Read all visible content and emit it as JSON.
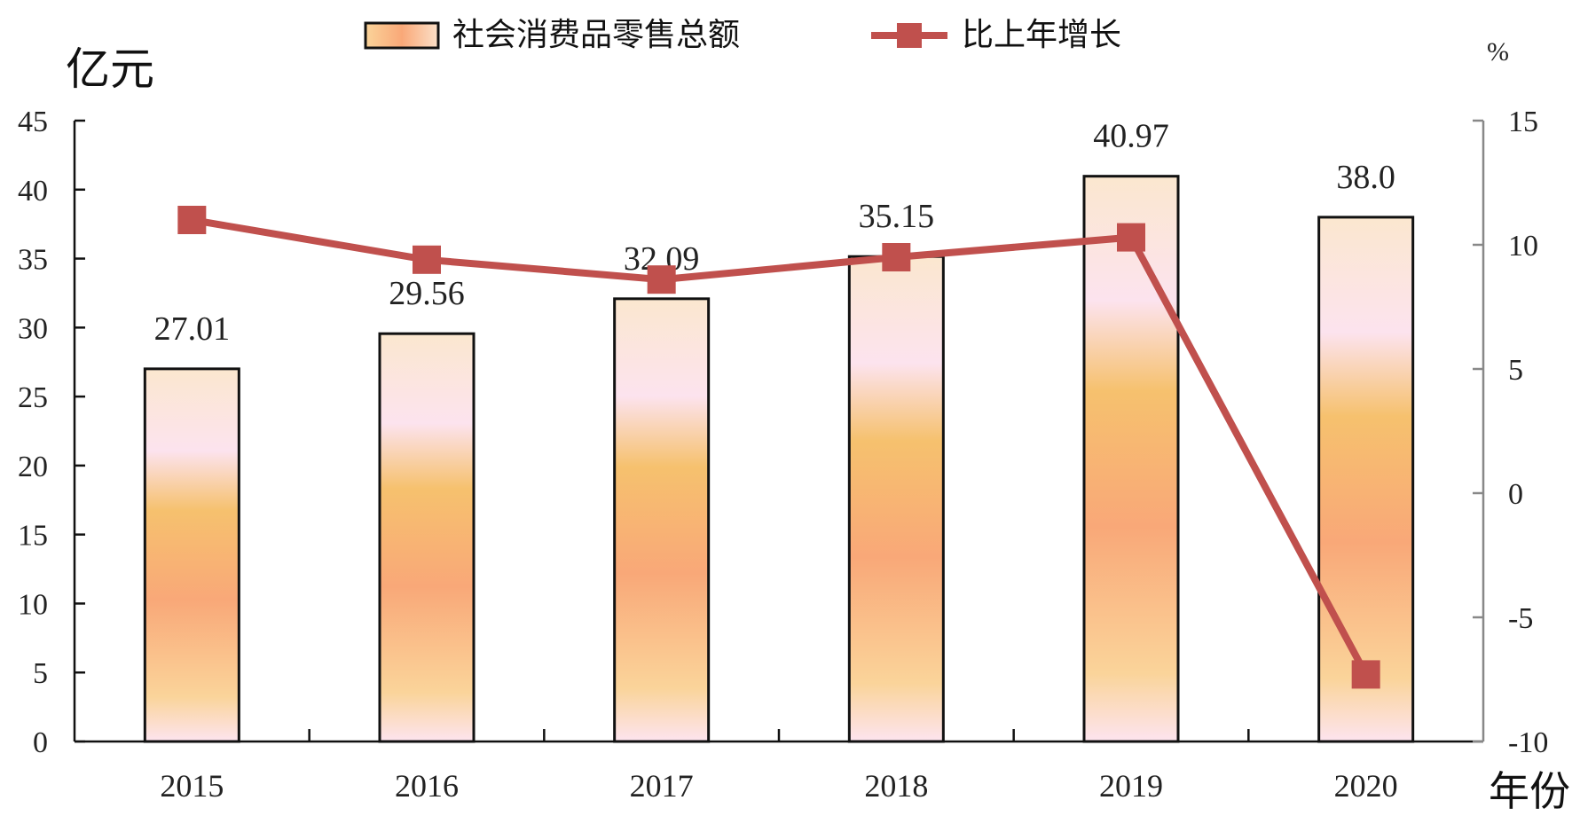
{
  "chart_data": {
    "type": "bar",
    "categories": [
      "2015",
      "2016",
      "2017",
      "2018",
      "2019",
      "2020"
    ],
    "series": [
      {
        "name": "社会消费品零售总额",
        "type": "bar",
        "axis": "left",
        "values": [
          27.01,
          29.56,
          32.09,
          35.15,
          40.97,
          38.0
        ],
        "labels": [
          "27.01",
          "29.56",
          "32.09",
          "35.15",
          "40.97",
          "38.0"
        ]
      },
      {
        "name": "比上年增长",
        "type": "line",
        "axis": "right",
        "values": [
          11.0,
          9.4,
          8.6,
          9.5,
          10.3,
          -7.3
        ],
        "color": "#c0504d"
      }
    ],
    "left_axis": {
      "unit": "亿元",
      "ylim": [
        0,
        45
      ],
      "ticks": [
        "0",
        "5",
        "10",
        "15",
        "20",
        "25",
        "30",
        "35",
        "40",
        "45"
      ]
    },
    "right_axis": {
      "unit": "%",
      "ylim": [
        -10,
        15
      ],
      "ticks": [
        "-10",
        "-5",
        "0",
        "5",
        "10",
        "15"
      ]
    },
    "xlabel": "年份",
    "legend": "top",
    "grid": false
  }
}
